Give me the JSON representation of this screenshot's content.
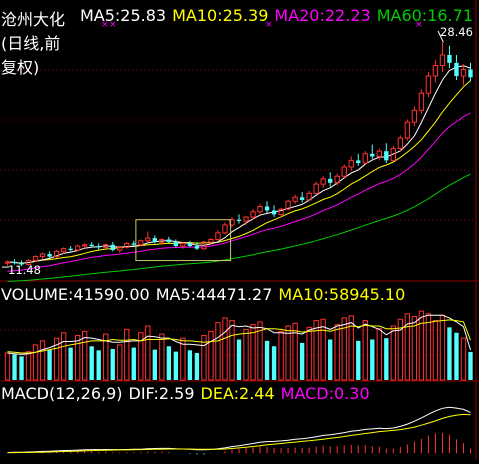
{
  "header": {
    "title": "沧州大化(日线,前复权)",
    "ma5": "MA5:25.83",
    "ma10": "MA10:25.39",
    "ma20": "MA20:22.23",
    "ma60": "MA60:16.71"
  },
  "volume_header": {
    "volume": "VOLUME:41590.00",
    "ma5": "MA5:44471.27",
    "ma10": "MA10:58945.10"
  },
  "macd_header": {
    "params": "MACD(12,26,9)",
    "dif": "DIF:2.59",
    "dea": "DEA:2.44",
    "macd": "MACD:0.30"
  },
  "annotations": {
    "high": "28.46",
    "low": "11.48"
  },
  "colors": {
    "background": "#000000",
    "up": "#ff3232",
    "down": "#54ffff",
    "ma5": "#ffffff",
    "ma10": "#ffff00",
    "ma20": "#ff00ff",
    "ma60": "#00cc00",
    "grid": "#8b0000",
    "highlight_box": "#cccc66"
  },
  "chart_data": [
    {
      "type": "candlestick",
      "ylim": [
        10.5,
        30.0
      ],
      "candles": [
        [
          11.7,
          11.9,
          11.5,
          11.8
        ],
        [
          11.8,
          12.0,
          11.6,
          11.7
        ],
        [
          11.7,
          11.9,
          11.48,
          11.6
        ],
        [
          11.6,
          12.0,
          11.5,
          11.9
        ],
        [
          11.9,
          12.3,
          11.8,
          12.2
        ],
        [
          12.2,
          12.5,
          12.0,
          12.4
        ],
        [
          12.4,
          12.6,
          12.1,
          12.2
        ],
        [
          12.2,
          12.7,
          12.1,
          12.6
        ],
        [
          12.6,
          12.9,
          12.4,
          12.8
        ],
        [
          12.8,
          13.0,
          12.6,
          12.7
        ],
        [
          12.7,
          13.1,
          12.6,
          13.0
        ],
        [
          13.0,
          13.2,
          12.8,
          13.1
        ],
        [
          13.1,
          13.3,
          12.9,
          13.0
        ],
        [
          13.0,
          13.2,
          12.7,
          12.9
        ],
        [
          12.9,
          13.2,
          12.8,
          13.1
        ],
        [
          13.1,
          13.3,
          12.6,
          12.7
        ],
        [
          12.7,
          13.0,
          12.5,
          12.9
        ],
        [
          12.9,
          13.3,
          12.8,
          13.2
        ],
        [
          13.2,
          13.4,
          13.0,
          13.1
        ],
        [
          13.1,
          13.5,
          13.0,
          13.4
        ],
        [
          13.4,
          14.1,
          13.3,
          13.6
        ],
        [
          13.6,
          13.8,
          13.2,
          13.3
        ],
        [
          13.3,
          13.6,
          13.1,
          13.5
        ],
        [
          13.5,
          13.7,
          13.2,
          13.3
        ],
        [
          13.3,
          13.5,
          12.9,
          13.0
        ],
        [
          13.0,
          13.3,
          12.8,
          13.2
        ],
        [
          13.2,
          13.4,
          12.9,
          13.0
        ],
        [
          13.0,
          13.3,
          12.7,
          12.8
        ],
        [
          12.8,
          13.4,
          12.7,
          13.3
        ],
        [
          13.3,
          13.6,
          13.1,
          13.5
        ],
        [
          13.5,
          14.2,
          13.4,
          14.0
        ],
        [
          14.0,
          14.8,
          13.9,
          14.6
        ],
        [
          14.6,
          15.2,
          14.4,
          15.0
        ],
        [
          15.0,
          15.4,
          14.7,
          14.9
        ],
        [
          14.9,
          15.3,
          14.6,
          15.2
        ],
        [
          15.2,
          15.8,
          15.0,
          15.6
        ],
        [
          15.6,
          16.2,
          15.4,
          16.0
        ],
        [
          16.0,
          16.4,
          15.5,
          15.7
        ],
        [
          15.7,
          16.1,
          15.2,
          15.4
        ],
        [
          15.4,
          15.9,
          15.2,
          15.8
        ],
        [
          15.8,
          16.5,
          15.7,
          16.4
        ],
        [
          16.4,
          16.9,
          16.2,
          16.7
        ],
        [
          16.7,
          17.1,
          16.3,
          16.5
        ],
        [
          16.5,
          17.2,
          16.4,
          17.0
        ],
        [
          17.0,
          17.9,
          16.9,
          17.7
        ],
        [
          17.7,
          18.3,
          17.4,
          18.1
        ],
        [
          18.1,
          18.6,
          17.5,
          17.8
        ],
        [
          17.8,
          18.5,
          17.6,
          18.3
        ],
        [
          18.3,
          19.2,
          18.1,
          19.0
        ],
        [
          19.0,
          19.8,
          18.7,
          19.5
        ],
        [
          19.5,
          20.0,
          19.1,
          19.3
        ],
        [
          19.3,
          20.2,
          19.2,
          20.0
        ],
        [
          20.0,
          20.7,
          19.6,
          19.8
        ],
        [
          19.8,
          20.4,
          19.5,
          20.2
        ],
        [
          20.2,
          20.8,
          19.3,
          19.5
        ],
        [
          19.5,
          20.6,
          19.4,
          20.4
        ],
        [
          20.4,
          21.4,
          20.2,
          21.2
        ],
        [
          21.2,
          22.6,
          21.0,
          22.4
        ],
        [
          22.4,
          23.6,
          22.1,
          23.3
        ],
        [
          23.3,
          24.9,
          23.0,
          24.6
        ],
        [
          24.6,
          26.2,
          24.3,
          25.9
        ],
        [
          25.9,
          27.1,
          25.4,
          26.7
        ],
        [
          26.7,
          28.46,
          26.2,
          27.5
        ],
        [
          27.5,
          28.2,
          26.5,
          26.9
        ],
        [
          26.9,
          27.5,
          25.6,
          25.9
        ],
        [
          25.9,
          26.8,
          25.2,
          26.4
        ],
        [
          26.4,
          26.9,
          25.5,
          25.8
        ]
      ]
    },
    {
      "type": "bar",
      "ylim": [
        0,
        120000
      ],
      "values": [
        40000,
        38000,
        35000,
        42000,
        52000,
        58000,
        45000,
        62000,
        70000,
        48000,
        66000,
        72000,
        50000,
        44000,
        68000,
        46000,
        52000,
        75000,
        48000,
        70000,
        80000,
        45000,
        68000,
        50000,
        42000,
        62000,
        44000,
        40000,
        66000,
        72000,
        85000,
        92000,
        88000,
        60000,
        75000,
        82000,
        86000,
        58000,
        50000,
        72000,
        80000,
        84000,
        55000,
        78000,
        88000,
        90000,
        60000,
        82000,
        92000,
        95000,
        58000,
        88000,
        60000,
        76000,
        62000,
        80000,
        90000,
        98000,
        94000,
        102000,
        98000,
        88000,
        96000,
        78000,
        70000,
        62000,
        41590
      ],
      "series": [
        {
          "name": "MA5",
          "values": [
            40000,
            39000,
            38000,
            39000,
            41000,
            45000,
            48000,
            52000,
            57000,
            57000,
            58000,
            63000,
            62000,
            60000,
            58000,
            56000,
            56000,
            57000,
            58000,
            58000,
            65000,
            64000,
            62000,
            62000,
            57000,
            53000,
            53000,
            52000,
            51000,
            57000,
            63000,
            71000,
            81000,
            79000,
            80000,
            77000,
            78000,
            76000,
            70000,
            70000,
            69000,
            70000,
            68000,
            74000,
            77000,
            79000,
            75000,
            80000,
            82000,
            85000,
            77000,
            83000,
            79000,
            75000,
            67000,
            73000,
            74000,
            83000,
            85000,
            93000,
            96000,
            96000,
            96000,
            92000,
            86000,
            79000,
            44471
          ]
        },
        {
          "name": "MA10",
          "values": [
            42000,
            41000,
            40000,
            40000,
            41000,
            43000,
            45000,
            47000,
            50000,
            52000,
            54000,
            56000,
            58000,
            58000,
            58000,
            60000,
            59000,
            59000,
            60000,
            58000,
            60000,
            60000,
            60000,
            61000,
            60000,
            58000,
            58000,
            57000,
            56000,
            57000,
            58000,
            62000,
            66000,
            68000,
            69000,
            70000,
            73000,
            76000,
            76000,
            75000,
            73000,
            73000,
            71000,
            72000,
            73000,
            74000,
            72000,
            75000,
            77000,
            80000,
            79000,
            81000,
            80000,
            80000,
            76000,
            76000,
            77000,
            79000,
            80000,
            84000,
            85000,
            87000,
            88000,
            89000,
            88000,
            86000,
            58945
          ]
        }
      ]
    },
    {
      "type": "line",
      "ylim": [
        -0.3,
        3.5
      ],
      "series": [
        {
          "name": "DIF",
          "values": [
            0.05,
            0.06,
            0.06,
            0.08,
            0.1,
            0.12,
            0.13,
            0.15,
            0.17,
            0.18,
            0.2,
            0.22,
            0.23,
            0.23,
            0.24,
            0.23,
            0.23,
            0.24,
            0.25,
            0.26,
            0.29,
            0.3,
            0.31,
            0.31,
            0.28,
            0.27,
            0.25,
            0.22,
            0.22,
            0.24,
            0.28,
            0.34,
            0.42,
            0.48,
            0.55,
            0.62,
            0.7,
            0.74,
            0.75,
            0.78,
            0.83,
            0.89,
            0.92,
            0.97,
            1.05,
            1.13,
            1.17,
            1.23,
            1.31,
            1.4,
            1.44,
            1.51,
            1.54,
            1.58,
            1.56,
            1.6,
            1.7,
            1.85,
            2.03,
            2.24,
            2.47,
            2.68,
            2.85,
            2.92,
            2.86,
            2.78,
            2.59
          ]
        },
        {
          "name": "DEA",
          "values": [
            0.04,
            0.04,
            0.05,
            0.05,
            0.06,
            0.07,
            0.08,
            0.1,
            0.11,
            0.12,
            0.14,
            0.15,
            0.17,
            0.18,
            0.19,
            0.2,
            0.21,
            0.21,
            0.22,
            0.23,
            0.24,
            0.25,
            0.26,
            0.27,
            0.27,
            0.27,
            0.27,
            0.26,
            0.26,
            0.25,
            0.26,
            0.27,
            0.3,
            0.34,
            0.38,
            0.43,
            0.48,
            0.54,
            0.58,
            0.62,
            0.66,
            0.71,
            0.75,
            0.79,
            0.84,
            0.89,
            0.95,
            1.0,
            1.06,
            1.13,
            1.19,
            1.25,
            1.31,
            1.37,
            1.41,
            1.45,
            1.5,
            1.57,
            1.66,
            1.78,
            1.91,
            2.05,
            2.21,
            2.33,
            2.42,
            2.46,
            2.44
          ]
        }
      ]
    }
  ]
}
